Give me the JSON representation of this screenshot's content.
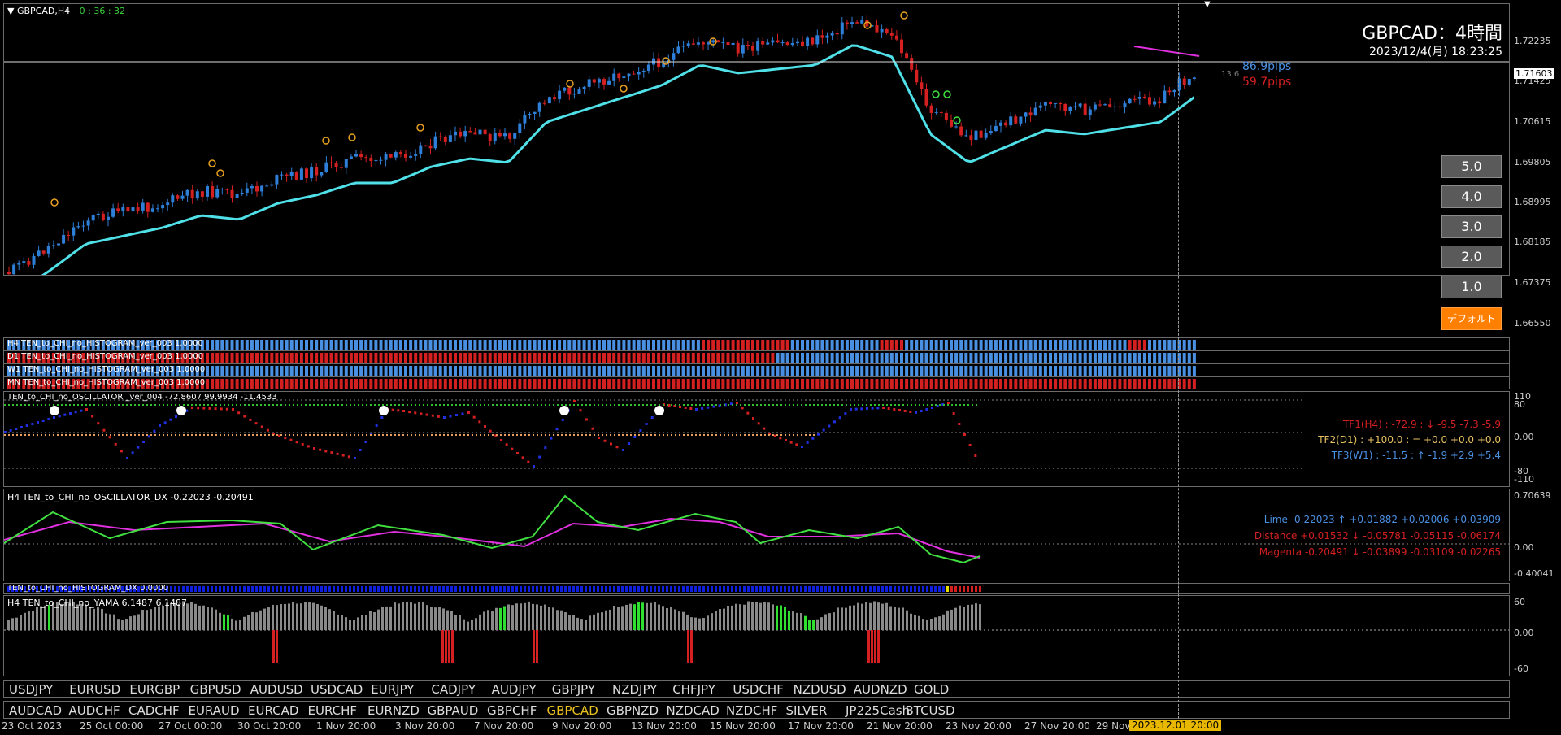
{
  "window": {
    "symbol": "GBPCAD,H4",
    "countdown": "0 : 36 : 32"
  },
  "header": {
    "title": "GBPCAD：4時間",
    "datetime": "2023/12/4(月) 18:23:25"
  },
  "pips": {
    "up": "86.9pips",
    "down": "59.7pips",
    "grey": "13.6"
  },
  "price_axis": {
    "ticks": [
      "1.72235",
      "1.71425",
      "1.70615",
      "1.69805",
      "1.68995",
      "1.68185",
      "1.67375",
      "1.66550"
    ],
    "current": "1.71603"
  },
  "zoom_buttons": [
    "5.0",
    "4.0",
    "3.0",
    "2.0",
    "1.0",
    "デフォルト"
  ],
  "histograms": {
    "h4": "H4  TEN_to_CHI_no_HISTOGRAM_ver_003 1.0000",
    "d1": "D1  TEN_to_CHI_no_HISTOGRAM_ver_003 1.0000",
    "w1": "W1  TEN_to_CHI_no_HISTOGRAM_ver_003 1.0000",
    "mn": "MN  TEN_to_CHI_no_HISTOGRAM_ver_003 1.0000"
  },
  "oscillator": {
    "label": "TEN_to_CHI_no_OSCILLATOR _ver_004 -72.8607 99.9934 -11.4533",
    "axis": [
      "110",
      "80",
      "0.00",
      "-80",
      "-110"
    ],
    "tf1": "TF1(H4) : -72.9 : ↓  -9.5  -7.3  -5.9",
    "tf2": "TF2(D1) : +100.0 : = +0.0  +0.0  +0.0",
    "tf3": "TF3(W1) : -11.5 : ↑  -1.9  +2.9  +5.4"
  },
  "oscillator_dx": {
    "label": "H4  TEN_to_CHI_no_OSCILLATOR_DX  -0.22023 -0.20491",
    "axis": [
      "0.70639",
      "0.00",
      "-0.40041"
    ],
    "lime": "Lime  -0.22023 ↑  +0.01882  +0.02006  +0.03909",
    "distance": "Distance  +0.01532 ↓  -0.05781  -0.05115  -0.06174",
    "magenta": "Magenta  -0.20491 ↓  -0.03899  -0.03109  -0.02265"
  },
  "histogram_dx": {
    "label": "TEN_to_CHI_no_HISTOGRAM_DX 0.0000"
  },
  "yama": {
    "label": "H4  TEN_to_CHI_no_YAMA  6.1487 6.1487",
    "axis": [
      "60",
      "0.00",
      "-60"
    ]
  },
  "symbols_row1": [
    "USDJPY",
    "EURUSD",
    "EURGBP",
    "GBPUSD",
    "AUDUSD",
    "USDCAD",
    "EURJPY",
    "CADJPY",
    "AUDJPY",
    "GBPJPY",
    "NZDJPY",
    "CHFJPY",
    "USDCHF",
    "NZDUSD",
    "AUDNZD",
    "GOLD"
  ],
  "symbols_row2": [
    "AUDCAD",
    "AUDCHF",
    "CADCHF",
    "EURAUD",
    "EURCAD",
    "EURCHF",
    "EURNZD",
    "GBPAUD",
    "GBPCHF",
    "GBPCAD",
    "GBPNZD",
    "NZDCAD",
    "NZDCHF",
    "SILVER",
    "JP225Cash",
    "BTCUSD"
  ],
  "active_symbol": "GBPCAD",
  "time_axis": [
    "23 Oct 2023",
    "25 Oct 00:00",
    "27 Oct 00:00",
    "30 Oct 20:00",
    "1 Nov 20:00",
    "3 Nov 20:00",
    "7 Nov 20:00",
    "9 Nov 20:00",
    "13 Nov 20:00",
    "15 Nov 20:00",
    "17 Nov 20:00",
    "21 Nov 20:00",
    "23 Nov 20:00",
    "27 Nov 20:00",
    "29 Nov"
  ],
  "cursor_time": "2023.12.01 20:00",
  "colors": {
    "bull": "#2e7fd8",
    "bear": "#d42020",
    "ma_cyan": "#4fe0e8",
    "magenta": "#e030e0",
    "lime": "#40e040"
  }
}
